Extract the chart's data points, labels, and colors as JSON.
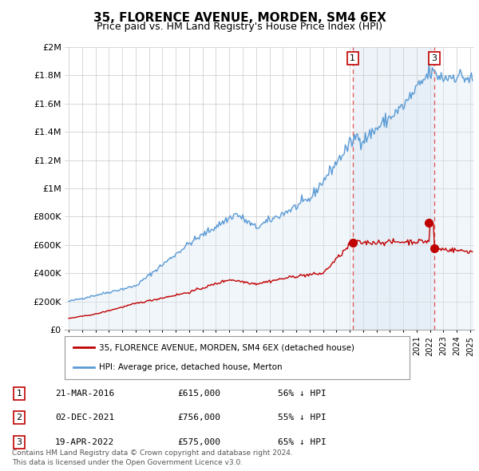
{
  "title": "35, FLORENCE AVENUE, MORDEN, SM4 6EX",
  "subtitle": "Price paid vs. HM Land Registry's House Price Index (HPI)",
  "hpi_label": "HPI: Average price, detached house, Merton",
  "property_label": "35, FLORENCE AVENUE, MORDEN, SM4 6EX (detached house)",
  "footnote1": "Contains HM Land Registry data © Crown copyright and database right 2024.",
  "footnote2": "This data is licensed under the Open Government Licence v3.0.",
  "transactions": [
    {
      "num": 1,
      "date": "21-MAR-2016",
      "price": "£615,000",
      "pct": "56% ↓ HPI",
      "year": 2016.22
    },
    {
      "num": 2,
      "date": "02-DEC-2021",
      "price": "£756,000",
      "pct": "55% ↓ HPI",
      "year": 2021.92
    },
    {
      "num": 3,
      "date": "19-APR-2022",
      "price": "£575,000",
      "pct": "65% ↓ HPI",
      "year": 2022.3
    }
  ],
  "trans_prices": [
    615000,
    756000,
    575000
  ],
  "hpi_color": "#5b9bd5",
  "hpi_fill_color": "#dce9f5",
  "price_color": "#c00000",
  "vline_color": "#e06060",
  "background_color": "#ffffff",
  "grid_color": "#c8c8c8",
  "ylim_max": 2000000,
  "xlim_start": 1994.7,
  "xlim_end": 2025.3,
  "yticks": [
    0,
    200000,
    400000,
    600000,
    800000,
    1000000,
    1200000,
    1400000,
    1600000,
    1800000,
    2000000
  ]
}
